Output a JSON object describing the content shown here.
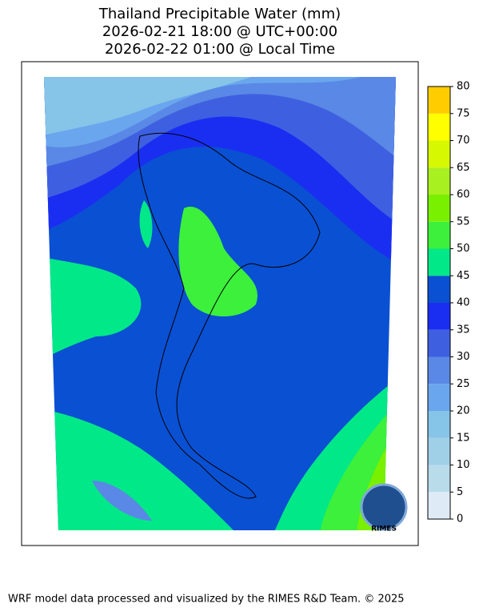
{
  "title": [
    "Thailand Precipitable Water (mm)",
    "2026-02-21 18:00 @ UTC+00:00",
    "2026-02-22 01:00 @ Local Time"
  ],
  "colorbar": {
    "ticks": [
      0,
      5,
      10,
      15,
      20,
      25,
      30,
      35,
      40,
      45,
      50,
      55,
      60,
      65,
      70,
      75,
      80
    ],
    "colors": [
      "#deebf7",
      "#b9dcea",
      "#a0d0e8",
      "#86c4e8",
      "#6aa6ee",
      "#5a88e6",
      "#3e60e0",
      "#1a2ef2",
      "#0a50d2",
      "#00e888",
      "#3cf03c",
      "#78f000",
      "#a8f020",
      "#d6f800",
      "#ffff00",
      "#ffcc00"
    ]
  },
  "logo": {
    "text": "RIMES"
  },
  "footer": "WRF model data processed and visualized by the RIMES R&D Team. © 2025"
}
